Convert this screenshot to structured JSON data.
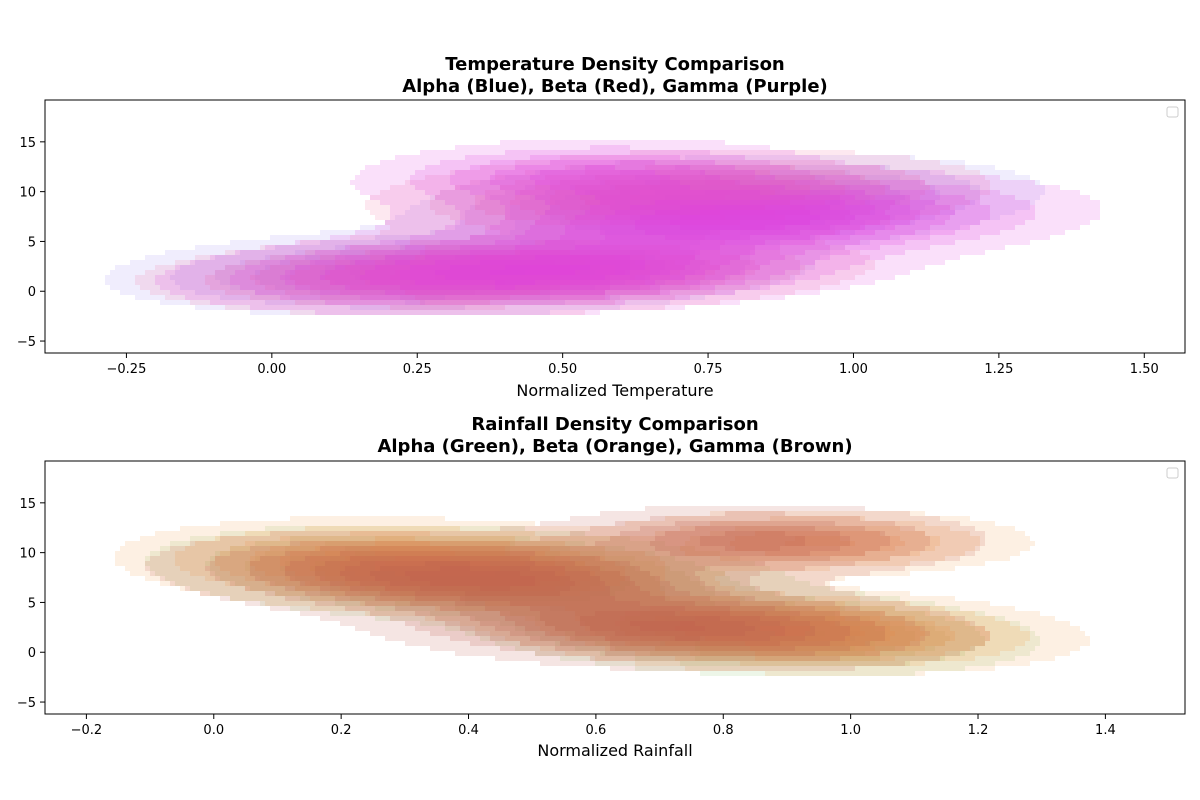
{
  "chart_data": [
    {
      "type": "kde_contour",
      "title_line1": "Temperature Density Comparison",
      "title_line2": "Alpha (Blue), Beta (Red), Gamma (Purple)",
      "xlabel": "Normalized Temperature",
      "ylabel": "",
      "xlim": [
        -0.39,
        1.57
      ],
      "ylim": [
        -6.2,
        19.2
      ],
      "xticks": [
        -0.25,
        0.0,
        0.25,
        0.5,
        0.75,
        1.0,
        1.25,
        1.5
      ],
      "xtick_labels": [
        "−0.25",
        "0.00",
        "0.25",
        "0.50",
        "0.75",
        "1.00",
        "1.25",
        "1.50"
      ],
      "yticks": [
        -5,
        0,
        5,
        10,
        15
      ],
      "ytick_labels": [
        "−5",
        "0",
        "5",
        "10",
        "15"
      ],
      "legend": "top-right, empty",
      "series": [
        {
          "name": "Alpha",
          "color": "#a08cf0",
          "components": [
            {
              "mx": 0.32,
              "my": 2.0,
              "sx": 0.24,
              "sy": 1.8,
              "rho": 0.18,
              "w": 1.0
            },
            {
              "mx": 0.78,
              "my": 8.8,
              "sx": 0.22,
              "sy": 2.0,
              "rho": 0.25,
              "w": 0.9
            }
          ]
        },
        {
          "name": "Beta",
          "color": "#f070a0",
          "components": [
            {
              "mx": 0.4,
              "my": 1.8,
              "sx": 0.25,
              "sy": 1.7,
              "rho": 0.2,
              "w": 1.0
            },
            {
              "mx": 0.7,
              "my": 9.6,
              "sx": 0.22,
              "sy": 1.9,
              "rho": 0.22,
              "w": 0.8
            }
          ]
        },
        {
          "name": "Gamma",
          "color": "#e040e0",
          "components": [
            {
              "mx": 0.45,
              "my": 2.0,
              "sx": 0.26,
              "sy": 1.8,
              "rho": 0.22,
              "w": 1.0
            },
            {
              "mx": 0.82,
              "my": 7.2,
              "sx": 0.24,
              "sy": 2.0,
              "rho": 0.2,
              "w": 1.1
            },
            {
              "mx": 0.55,
              "my": 11.5,
              "sx": 0.18,
              "sy": 1.7,
              "rho": 0.1,
              "w": 0.6
            }
          ]
        }
      ]
    },
    {
      "type": "kde_contour",
      "title_line1": "Rainfall Density Comparison",
      "title_line2": "Alpha (Green), Beta (Orange), Gamma (Brown)",
      "xlabel": "Normalized Rainfall",
      "ylabel": "",
      "xlim": [
        -0.265,
        1.525
      ],
      "ylim": [
        -6.2,
        19.2
      ],
      "xticks": [
        -0.2,
        0.0,
        0.2,
        0.4,
        0.6,
        0.8,
        1.0,
        1.2,
        1.4
      ],
      "xtick_labels": [
        "−0.2",
        "0.0",
        "0.2",
        "0.4",
        "0.6",
        "0.8",
        "1.0",
        "1.2",
        "1.4"
      ],
      "yticks": [
        -5,
        0,
        5,
        10,
        15
      ],
      "ytick_labels": [
        "−5",
        "0",
        "5",
        "10",
        "15"
      ],
      "legend": "top-right, empty",
      "series": [
        {
          "name": "Alpha",
          "color": "#90c870",
          "components": [
            {
              "mx": 0.4,
              "my": 7.8,
              "sx": 0.2,
              "sy": 2.0,
              "rho": -0.25,
              "w": 1.0
            },
            {
              "mx": 0.85,
              "my": 2.0,
              "sx": 0.18,
              "sy": 1.8,
              "rho": -0.2,
              "w": 0.9
            }
          ]
        },
        {
          "name": "Beta",
          "color": "#f5a050",
          "components": [
            {
              "mx": 0.35,
              "my": 8.5,
              "sx": 0.2,
              "sy": 2.0,
              "rho": -0.22,
              "w": 1.0
            },
            {
              "mx": 0.9,
              "my": 2.2,
              "sx": 0.19,
              "sy": 1.8,
              "rho": -0.2,
              "w": 0.9
            },
            {
              "mx": 0.95,
              "my": 11.0,
              "sx": 0.15,
              "sy": 1.5,
              "rho": 0.0,
              "w": 0.5
            }
          ]
        },
        {
          "name": "Gamma",
          "color": "#c06050",
          "components": [
            {
              "mx": 0.4,
              "my": 7.5,
              "sx": 0.2,
              "sy": 1.9,
              "rho": -0.25,
              "w": 1.1
            },
            {
              "mx": 0.72,
              "my": 2.5,
              "sx": 0.2,
              "sy": 1.8,
              "rho": -0.2,
              "w": 1.0
            },
            {
              "mx": 0.85,
              "my": 11.2,
              "sx": 0.16,
              "sy": 1.6,
              "rho": 0.0,
              "w": 0.6
            }
          ]
        }
      ]
    }
  ]
}
